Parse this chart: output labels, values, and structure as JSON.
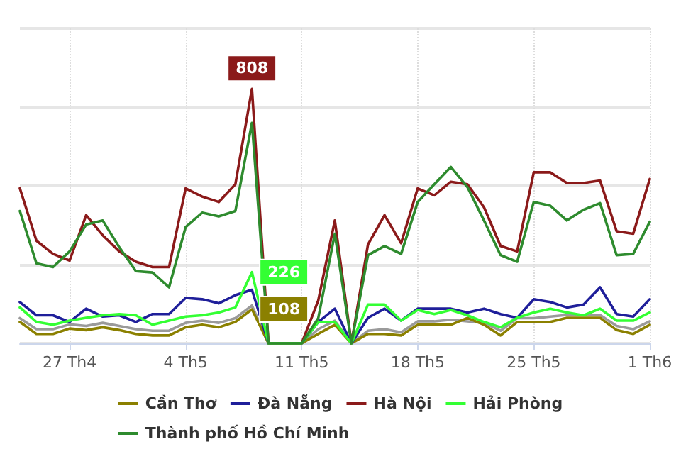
{
  "chart_data": {
    "type": "line",
    "x": [
      "--04-24",
      "--04-25",
      "--04-26",
      "--04-27",
      "--04-28",
      "--04-29",
      "--04-30",
      "--05-01",
      "--05-02",
      "--05-03",
      "--05-04",
      "--05-05",
      "--05-06",
      "--05-07",
      "--05-08",
      "--05-09",
      "--05-10",
      "--05-11",
      "--05-12",
      "--05-13",
      "--05-14",
      "--05-15",
      "--05-16",
      "--05-17",
      "--05-18",
      "--05-19",
      "--05-20",
      "--05-21",
      "--05-22",
      "--05-23",
      "--05-24",
      "--05-25",
      "--05-26",
      "--05-27",
      "--05-28",
      "--05-29",
      "--05-30",
      "--05-31",
      "--06-01"
    ],
    "xlim": [
      "--04-24",
      "--06-01"
    ],
    "xticks": [
      {
        "value": "--04-27",
        "label": "27 Th4"
      },
      {
        "value": "--05-04",
        "label": "4 Th5"
      },
      {
        "value": "--05-11",
        "label": "11 Th5"
      },
      {
        "value": "--05-18",
        "label": "18 Th5"
      },
      {
        "value": "--05-25",
        "label": "25 Th5"
      },
      {
        "value": "--06-01",
        "label": "1 Th6"
      }
    ],
    "ylim": [
      0,
      1000
    ],
    "yticks": [
      {
        "value": 0,
        "label": null
      },
      {
        "value": 250,
        "label": null
      },
      {
        "value": 500,
        "label": null
      },
      {
        "value": 750,
        "label": null
      },
      {
        "value": 1000,
        "label": null
      }
    ],
    "tick_labels": "x",
    "grid": true,
    "legend": "bottom",
    "marker": "none",
    "line_style": "solid",
    "series": [
      {
        "color": "#9a9a9a",
        "values": [
          80,
          45,
          45,
          60,
          55,
          65,
          55,
          45,
          40,
          40,
          65,
          72,
          65,
          80,
          120,
          0,
          0,
          0,
          45,
          72,
          0,
          40,
          45,
          35,
          70,
          70,
          75,
          70,
          65,
          40,
          80,
          80,
          85,
          90,
          90,
          90,
          55,
          45,
          70
        ]
      },
      {
        "name": "Cần Thơ",
        "color": "#8b8000",
        "values": [
          68,
          30,
          30,
          47,
          42,
          51,
          42,
          30,
          25,
          25,
          51,
          59,
          51,
          68,
          108,
          0,
          0,
          0,
          30,
          59,
          0,
          30,
          30,
          25,
          59,
          59,
          59,
          81,
          59,
          25,
          68,
          68,
          68,
          81,
          81,
          81,
          42,
          30,
          59
        ],
        "value_labels": [
          null,
          null,
          null,
          null,
          null,
          null,
          null,
          null,
          null,
          null,
          null,
          null,
          null,
          null,
          "108",
          null,
          null,
          null,
          null,
          null,
          null,
          null,
          null,
          null,
          null,
          null,
          null,
          null,
          null,
          null,
          null,
          null,
          null,
          null,
          null,
          null,
          null,
          null,
          null
        ]
      },
      {
        "name": "Đà Nẵng",
        "color": "#1f1f9a",
        "values": [
          131,
          89,
          89,
          68,
          110,
          85,
          89,
          68,
          93,
          93,
          144,
          140,
          127,
          153,
          170,
          0,
          0,
          0,
          68,
          110,
          0,
          81,
          110,
          72,
          110,
          110,
          110,
          98,
          110,
          93,
          81,
          140,
          131,
          114,
          123,
          178,
          93,
          85,
          140
        ]
      },
      {
        "name": "Hà Nội",
        "color": "#8b1a1a",
        "values": [
          492,
          326,
          284,
          263,
          407,
          343,
          292,
          259,
          242,
          242,
          492,
          466,
          449,
          505,
          808,
          0,
          0,
          0,
          136,
          390,
          0,
          314,
          407,
          318,
          492,
          470,
          513,
          505,
          432,
          309,
          292,
          543,
          543,
          509,
          509,
          517,
          356,
          348,
          522
        ],
        "value_labels": [
          null,
          null,
          null,
          null,
          null,
          null,
          null,
          null,
          null,
          null,
          null,
          null,
          null,
          null,
          "808",
          null,
          null,
          null,
          null,
          null,
          null,
          null,
          null,
          null,
          null,
          null,
          null,
          null,
          null,
          null,
          null,
          null,
          null,
          null,
          null,
          null,
          null,
          null,
          null
        ]
      },
      {
        "name": "Hải Phòng",
        "color": "#33ff33",
        "values": [
          114,
          68,
          59,
          72,
          81,
          89,
          93,
          89,
          59,
          72,
          85,
          89,
          98,
          114,
          226,
          0,
          0,
          0,
          68,
          68,
          0,
          123,
          123,
          72,
          106,
          93,
          106,
          89,
          68,
          51,
          81,
          98,
          110,
          98,
          89,
          110,
          72,
          72,
          98
        ],
        "value_labels": [
          null,
          null,
          null,
          null,
          null,
          null,
          null,
          null,
          null,
          null,
          null,
          null,
          null,
          null,
          "226",
          null,
          null,
          null,
          null,
          null,
          null,
          null,
          null,
          null,
          null,
          null,
          null,
          null,
          null,
          null,
          null,
          null,
          null,
          null,
          null,
          null,
          null,
          null,
          null
        ]
      },
      {
        "name": "Thành phố Hồ Chí Minh",
        "color": "#2e8b2e",
        "values": [
          420,
          254,
          242,
          292,
          377,
          390,
          305,
          229,
          225,
          178,
          369,
          415,
          403,
          420,
          700,
          0,
          0,
          0,
          80,
          348,
          0,
          280,
          309,
          284,
          449,
          505,
          560,
          496,
          390,
          280,
          259,
          449,
          437,
          390,
          424,
          445,
          280,
          284,
          386
        ]
      }
    ]
  }
}
